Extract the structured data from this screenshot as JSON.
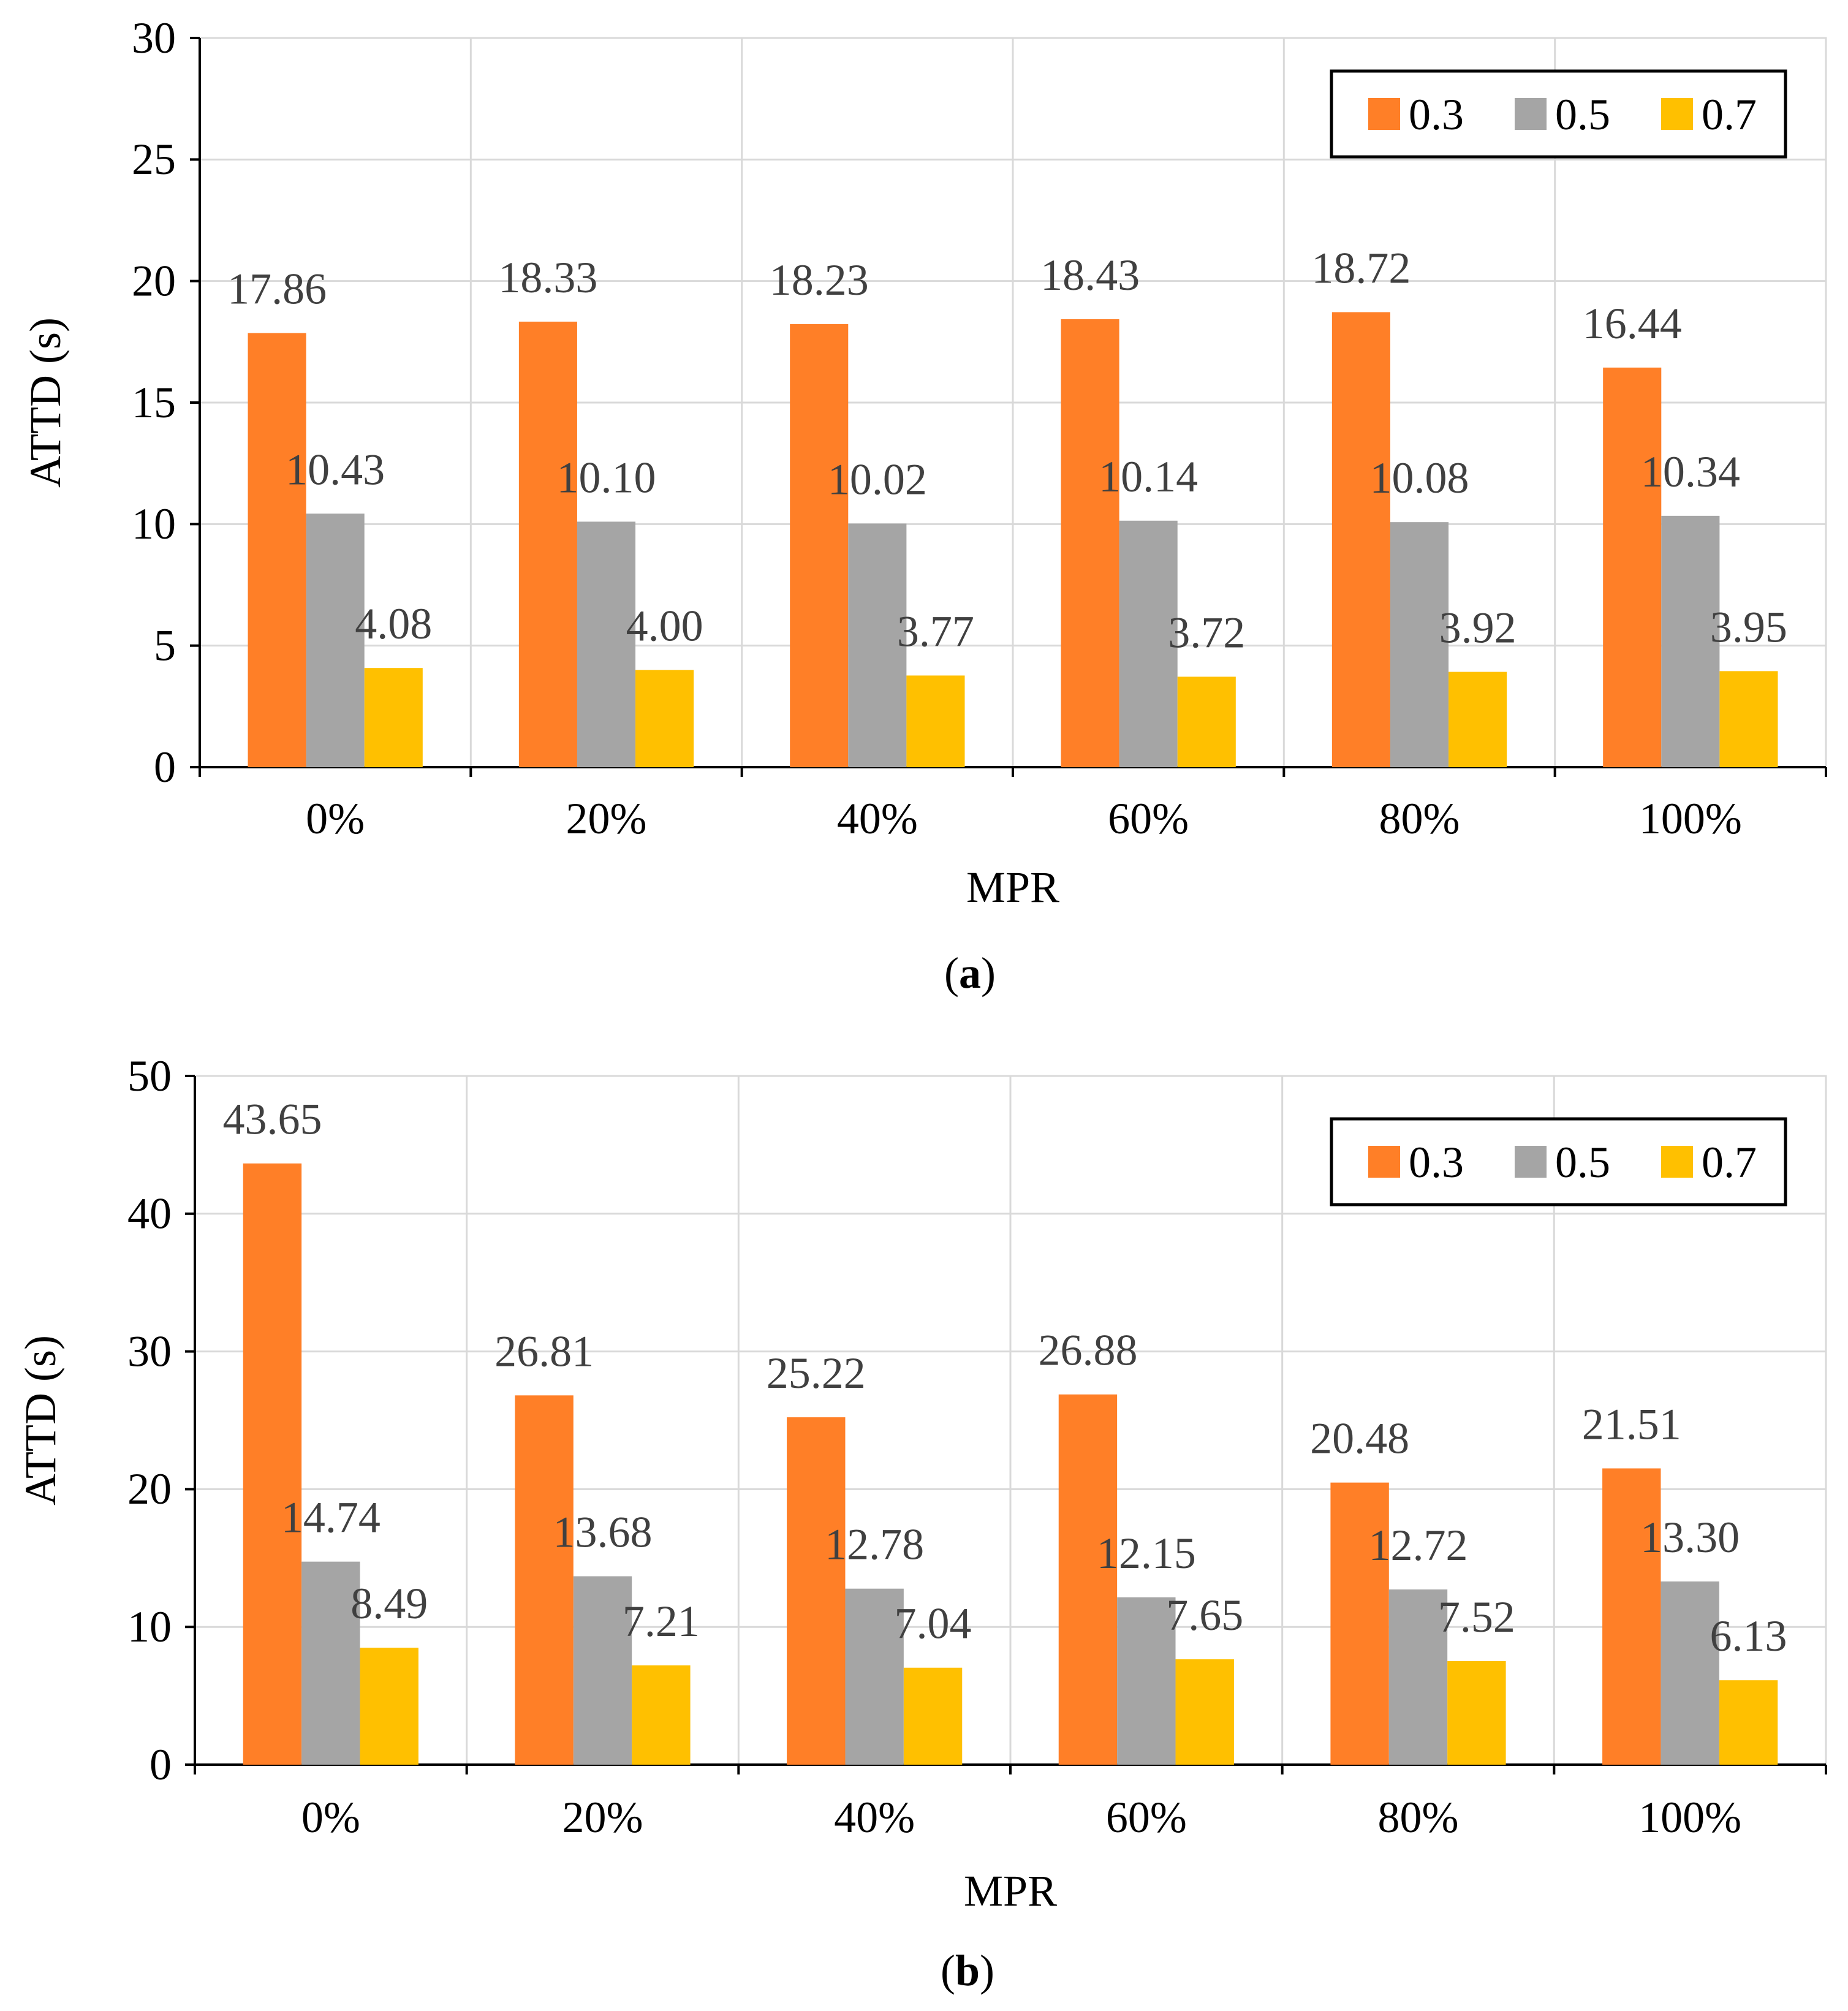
{
  "chart_data": [
    {
      "type": "bar",
      "panel_label": "a",
      "categories": [
        "0%",
        "20%",
        "40%",
        "60%",
        "80%",
        "100%"
      ],
      "xlabel": "MPR",
      "ylabel": "ATTD (s)",
      "ylim": [
        0,
        30
      ],
      "yticks": [
        0,
        5,
        10,
        15,
        20,
        25,
        30
      ],
      "grid": true,
      "legend_position": "top-right",
      "series": [
        {
          "name": "0.3",
          "color": "#FF7F27",
          "values": [
            17.86,
            18.33,
            18.23,
            18.43,
            18.72,
            16.44
          ],
          "labels": [
            "17.86",
            "18.33",
            "18.23",
            "18.43",
            "18.72",
            "16.44"
          ]
        },
        {
          "name": "0.5",
          "color": "#A5A5A5",
          "values": [
            10.43,
            10.1,
            10.02,
            10.14,
            10.08,
            10.34
          ],
          "labels": [
            "10.43",
            "10.10",
            "10.02",
            "10.14",
            "10.08",
            "10.34"
          ]
        },
        {
          "name": "0.7",
          "color": "#FFC000",
          "values": [
            4.08,
            4.0,
            3.77,
            3.72,
            3.92,
            3.95
          ],
          "labels": [
            "4.08",
            "4.00",
            "3.77",
            "3.72",
            "3.92",
            "3.95"
          ]
        }
      ]
    },
    {
      "type": "bar",
      "panel_label": "b",
      "categories": [
        "0%",
        "20%",
        "40%",
        "60%",
        "80%",
        "100%"
      ],
      "xlabel": "MPR",
      "ylabel": "ATTD (s)",
      "ylim": [
        0,
        50
      ],
      "yticks": [
        0,
        10,
        20,
        30,
        40,
        50
      ],
      "grid": true,
      "legend_position": "top-right",
      "series": [
        {
          "name": "0.3",
          "color": "#FF7F27",
          "values": [
            43.65,
            26.81,
            25.22,
            26.88,
            20.48,
            21.51
          ],
          "labels": [
            "43.65",
            "26.81",
            "25.22",
            "26.88",
            "20.48",
            "21.51"
          ]
        },
        {
          "name": "0.5",
          "color": "#A5A5A5",
          "values": [
            14.74,
            13.68,
            12.78,
            12.15,
            12.72,
            13.3
          ],
          "labels": [
            "14.74",
            "13.68",
            "12.78",
            "12.15",
            "12.72",
            "13.30"
          ]
        },
        {
          "name": "0.7",
          "color": "#FFC000",
          "values": [
            8.49,
            7.21,
            7.04,
            7.65,
            7.52,
            6.13
          ],
          "labels": [
            "8.49",
            "7.21",
            "7.04",
            "7.65",
            "7.52",
            "6.13"
          ]
        }
      ]
    }
  ]
}
